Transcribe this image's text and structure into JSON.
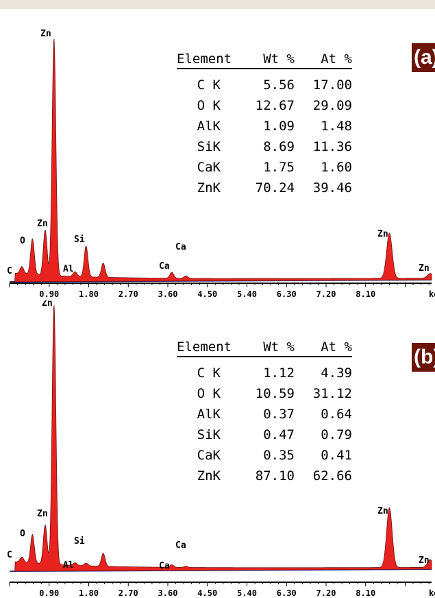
{
  "chart_data": [
    {
      "type": "area",
      "panel_label": "(a)",
      "xlabel": "keV",
      "x_ticks": [
        "0.90",
        "1.80",
        "2.70",
        "3.60",
        "4.50",
        "5.40",
        "6.30",
        "7.20",
        "8.10"
      ],
      "xlim": [
        0,
        9.6
      ],
      "fill_color": "#e8231f",
      "edge_color": "#6b1010",
      "baseline_color": "#2f3b9a",
      "peaks": [
        {
          "element": "C",
          "x": 0.28,
          "height": 0.03
        },
        {
          "element": "O",
          "x": 0.52,
          "height": 0.15
        },
        {
          "element": "Zn",
          "x": 0.81,
          "height": 0.19
        },
        {
          "element": "Zn",
          "x": 1.01,
          "height": 1.0
        },
        {
          "element": "Al",
          "x": 1.49,
          "height": 0.02
        },
        {
          "element": "Si",
          "x": 1.74,
          "height": 0.13
        },
        {
          "element": "",
          "x": 2.13,
          "height": 0.06
        },
        {
          "element": "Ca",
          "x": 3.69,
          "height": 0.025
        },
        {
          "element": "Ca",
          "x": 4.01,
          "height": 0.01
        },
        {
          "element": "Zn",
          "x": 8.64,
          "height": 0.19
        },
        {
          "element": "Zn",
          "x": 9.57,
          "height": 0.02
        }
      ],
      "table": {
        "headers": [
          "Element",
          "Wt %",
          "At %"
        ],
        "rows": [
          [
            "C K",
            "5.56",
            "17.00"
          ],
          [
            "O K",
            "12.67",
            "29.09"
          ],
          [
            "AlK",
            "1.09",
            "1.48"
          ],
          [
            "SiK",
            "8.69",
            "11.36"
          ],
          [
            "CaK",
            "1.75",
            "1.60"
          ],
          [
            "ZnK",
            "70.24",
            "39.46"
          ]
        ]
      }
    },
    {
      "type": "area",
      "panel_label": "(b)",
      "xlabel": "keV",
      "x_ticks": [
        "0.90",
        "1.80",
        "2.70",
        "3.60",
        "4.50",
        "5.40",
        "6.30",
        "7.20",
        "8.10"
      ],
      "xlim": [
        0,
        9.6
      ],
      "fill_color": "#e8231f",
      "edge_color": "#6b1010",
      "baseline_color": "#2f3b9a",
      "peaks": [
        {
          "element": "C",
          "x": 0.28,
          "height": 0.02
        },
        {
          "element": "O",
          "x": 0.52,
          "height": 0.11
        },
        {
          "element": "Zn",
          "x": 0.81,
          "height": 0.15
        },
        {
          "element": "Zn",
          "x": 1.01,
          "height": 1.0
        },
        {
          "element": "Al",
          "x": 1.49,
          "height": 0.01
        },
        {
          "element": "Si",
          "x": 1.74,
          "height": 0.01
        },
        {
          "element": "",
          "x": 2.13,
          "height": 0.05
        },
        {
          "element": "Ca",
          "x": 3.69,
          "height": 0.01
        },
        {
          "element": "Ca",
          "x": 4.01,
          "height": 0.005
        },
        {
          "element": "Zn",
          "x": 8.64,
          "height": 0.23
        },
        {
          "element": "Zn",
          "x": 9.57,
          "height": 0.03
        }
      ],
      "table": {
        "headers": [
          "Element",
          "Wt %",
          "At %"
        ],
        "rows": [
          [
            "C K",
            "1.12",
            "4.39"
          ],
          [
            "O K",
            "10.59",
            "31.12"
          ],
          [
            "AlK",
            "0.37",
            "0.64"
          ],
          [
            "SiK",
            "0.47",
            "0.79"
          ],
          [
            "CaK",
            "0.35",
            "0.41"
          ],
          [
            "ZnK",
            "87.10",
            "62.66"
          ]
        ]
      }
    }
  ]
}
